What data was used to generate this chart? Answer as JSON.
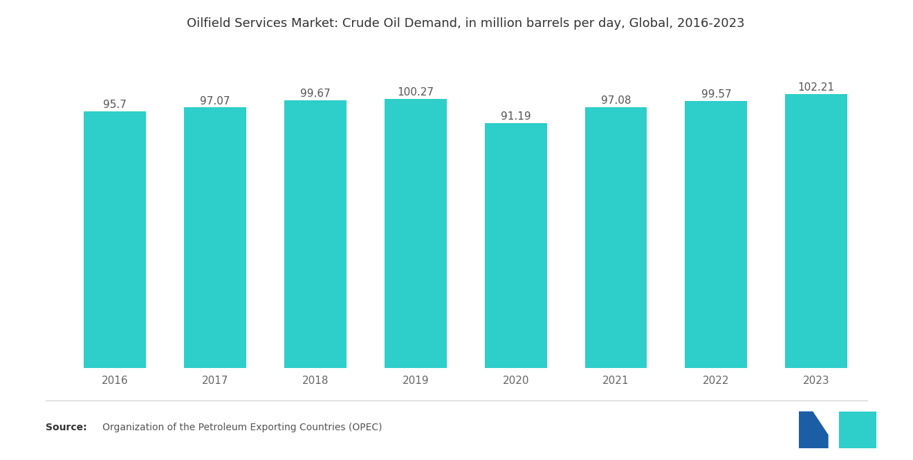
{
  "title": "Oilfield Services Market: Crude Oil Demand, in million barrels per day, Global, 2016-2023",
  "years": [
    "2016",
    "2017",
    "2018",
    "2019",
    "2020",
    "2021",
    "2022",
    "2023"
  ],
  "values": [
    95.7,
    97.07,
    99.67,
    100.27,
    91.19,
    97.08,
    99.57,
    102.21
  ],
  "bar_color": "#2ECECA",
  "background_color": "#FFFFFF",
  "title_fontsize": 13.0,
  "label_fontsize": 11,
  "tick_fontsize": 11,
  "source_bold": "Source:",
  "source_rest": "   Organization of the Petroleum Exporting Countries (OPEC)",
  "ylim_min": 0,
  "ylim_max": 120,
  "bar_width": 0.62,
  "logo_color1": "#1B5EA6",
  "logo_color2": "#2ECECA"
}
